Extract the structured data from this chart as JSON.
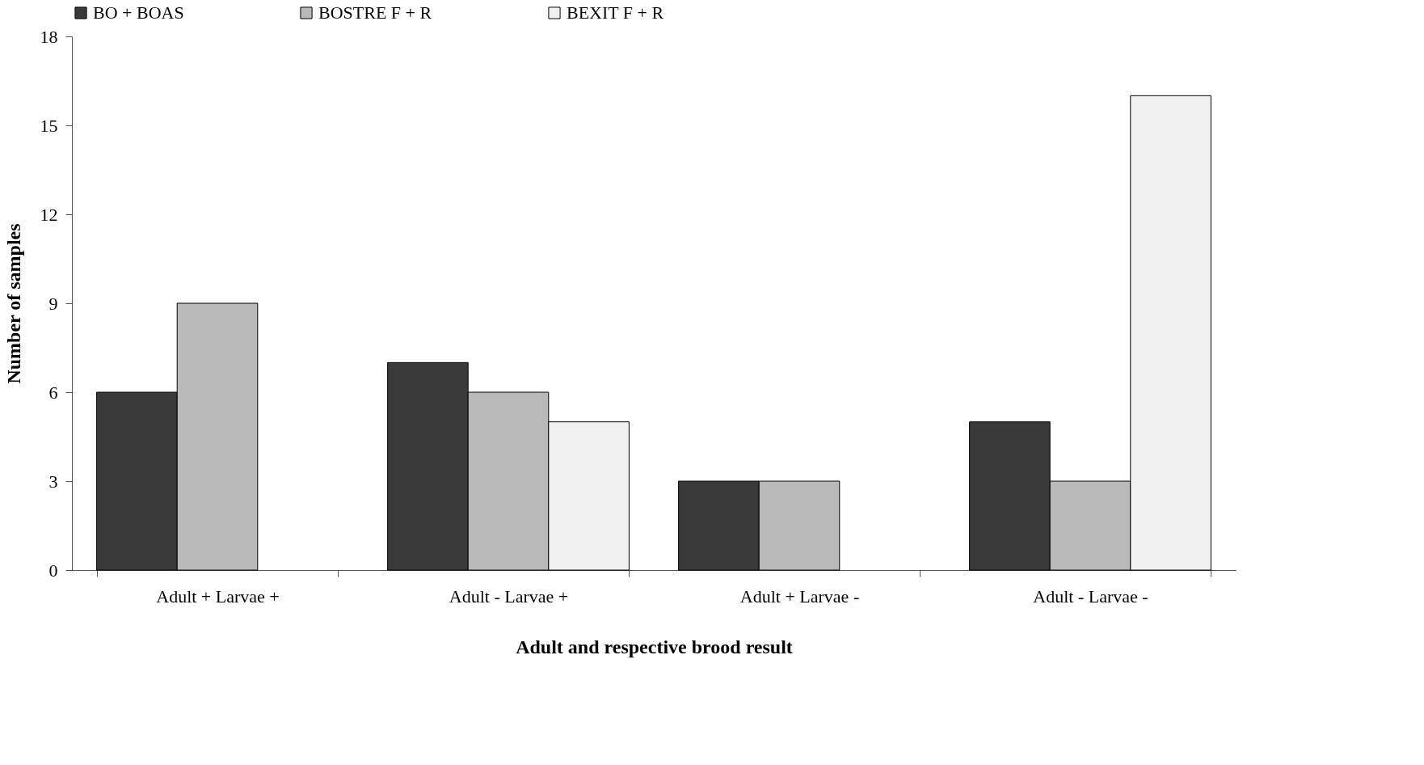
{
  "chart_data": {
    "type": "bar",
    "xlabel": "Adult and respective brood result",
    "ylabel": "Number of samples",
    "categories": [
      "Adult + Larvae +",
      "Adult - Larvae +",
      "Adult + Larvae -",
      "Adult - Larvae -"
    ],
    "series": [
      {
        "name": "BO + BOAS",
        "color": "#3a3a3a",
        "values": [
          6,
          7,
          3,
          5
        ]
      },
      {
        "name": "BOSTRE F + R",
        "color": "#b9b9b9",
        "values": [
          9,
          6,
          3,
          3
        ]
      },
      {
        "name": "BEXIT F + R",
        "color": "#f0f0f0",
        "values": [
          null,
          5,
          null,
          16
        ]
      }
    ],
    "ylim": [
      0,
      18
    ],
    "yticks": [
      0,
      3,
      6,
      9,
      12,
      15,
      18
    ],
    "grid": false,
    "legend": "top"
  }
}
